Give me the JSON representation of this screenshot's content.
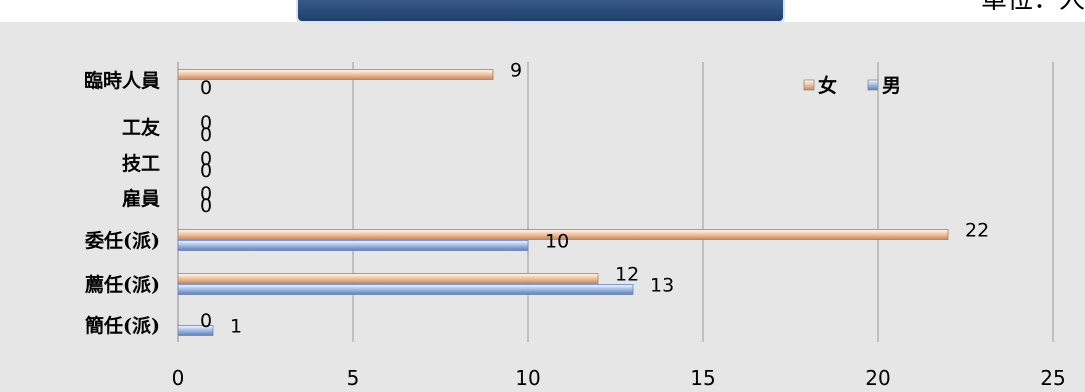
{
  "header": {
    "unit_label": "單位：人"
  },
  "chart_data": {
    "type": "bar",
    "orientation": "horizontal",
    "title": "",
    "xlabel": "",
    "ylabel": "",
    "categories": [
      "臨時人員",
      "工友",
      "技工",
      "雇員",
      "委任(派)",
      "薦任(派)",
      "簡任(派)"
    ],
    "series": [
      {
        "name": "女",
        "values": [
          9,
          0,
          0,
          0,
          22,
          12,
          0
        ]
      },
      {
        "name": "男",
        "values": [
          0,
          0,
          0,
          0,
          10,
          13,
          1
        ]
      }
    ],
    "xlim": [
      0,
      25
    ],
    "xticks": [
      "0",
      "5",
      "10",
      "15",
      "20",
      "25"
    ],
    "grid": "vertical",
    "legend": {
      "position": "top-right",
      "order": [
        "女",
        "男"
      ]
    },
    "colors": {
      "女": "#f2c7a5",
      "男": "#a8c0e8",
      "background": "#e6e6e6",
      "header": "#2a4f7e"
    }
  }
}
